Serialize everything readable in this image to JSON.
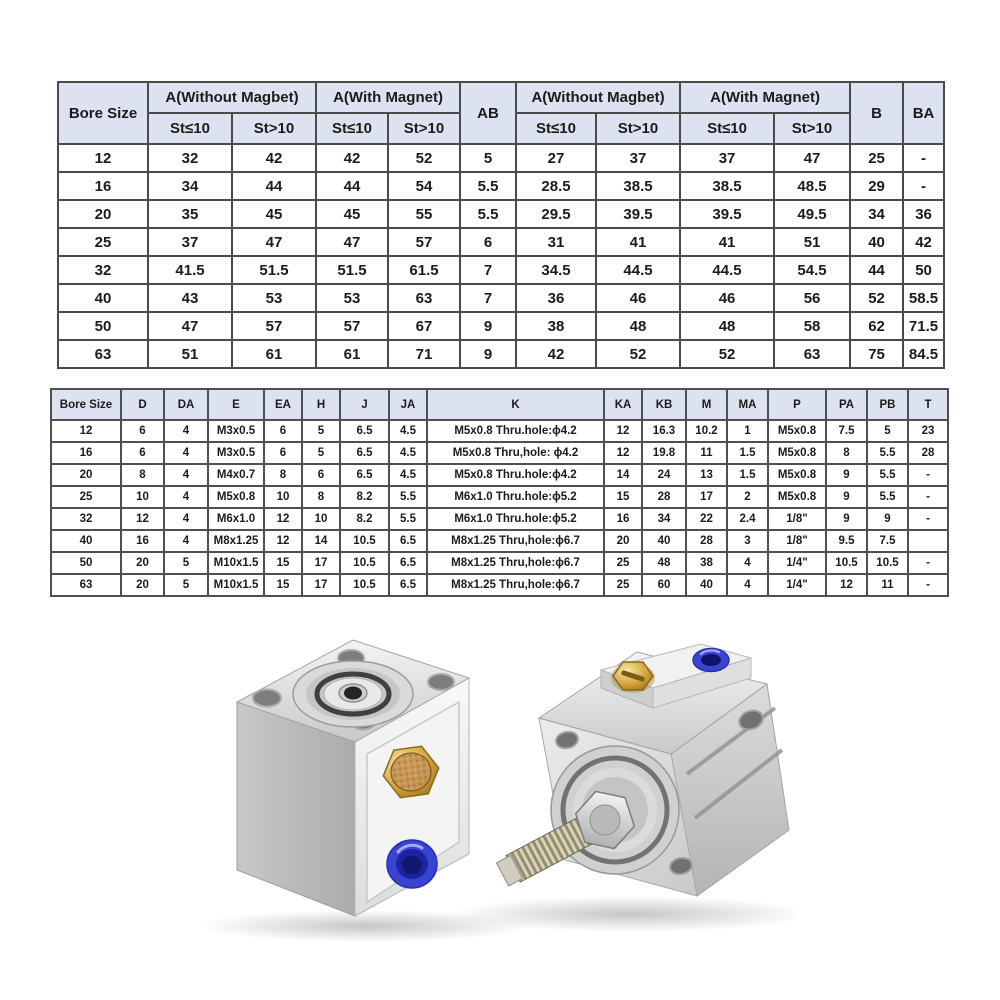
{
  "colors": {
    "header_bg": "#dde2f0",
    "table_border": "#4a4a4a",
    "text": "#1b1b1b",
    "page_bg": "#ffffff",
    "cylinder_body_silver": "#d6d9d8",
    "brass": "#c9992e",
    "port_blue": "#3640cf"
  },
  "table1": {
    "bore_header": "Bore Size",
    "groups": [
      "A(Without Magbet)",
      "A(With Magnet)",
      "A(Without Magbet)",
      "A(With Magnet)"
    ],
    "sub_headers": [
      "St≤10",
      "St>10",
      "St≤10",
      "St>10",
      "St≤10",
      "St>10",
      "St≤10",
      "St>10"
    ],
    "ab_header": "AB",
    "b_header": "B",
    "ba_header": "BA",
    "rows": [
      [
        "12",
        "32",
        "42",
        "42",
        "52",
        "5",
        "27",
        "37",
        "37",
        "47",
        "25",
        "-"
      ],
      [
        "16",
        "34",
        "44",
        "44",
        "54",
        "5.5",
        "28.5",
        "38.5",
        "38.5",
        "48.5",
        "29",
        "-"
      ],
      [
        "20",
        "35",
        "45",
        "45",
        "55",
        "5.5",
        "29.5",
        "39.5",
        "39.5",
        "49.5",
        "34",
        "36"
      ],
      [
        "25",
        "37",
        "47",
        "47",
        "57",
        "6",
        "31",
        "41",
        "41",
        "51",
        "40",
        "42"
      ],
      [
        "32",
        "41.5",
        "51.5",
        "51.5",
        "61.5",
        "7",
        "34.5",
        "44.5",
        "44.5",
        "54.5",
        "44",
        "50"
      ],
      [
        "40",
        "43",
        "53",
        "53",
        "63",
        "7",
        "36",
        "46",
        "46",
        "56",
        "52",
        "58.5"
      ],
      [
        "50",
        "47",
        "57",
        "57",
        "67",
        "9",
        "38",
        "48",
        "48",
        "58",
        "62",
        "71.5"
      ],
      [
        "63",
        "51",
        "61",
        "61",
        "71",
        "9",
        "42",
        "52",
        "52",
        "63",
        "75",
        "84.5"
      ]
    ]
  },
  "table2": {
    "columns": [
      "Bore Size",
      "D",
      "DA",
      "E",
      "EA",
      "H",
      "J",
      "JA",
      "K",
      "KA",
      "KB",
      "M",
      "MA",
      "P",
      "PA",
      "PB",
      "T"
    ],
    "rows": [
      [
        "12",
        "6",
        "4",
        "M3x0.5",
        "6",
        "5",
        "6.5",
        "4.5",
        "M5x0.8 Thru.hole:ϕ4.2",
        "12",
        "16.3",
        "10.2",
        "1",
        "M5x0.8",
        "7.5",
        "5",
        "23"
      ],
      [
        "16",
        "6",
        "4",
        "M3x0.5",
        "6",
        "5",
        "6.5",
        "4.5",
        "M5x0.8 Thru,hole: ϕ4.2",
        "12",
        "19.8",
        "11",
        "1.5",
        "M5x0.8",
        "8",
        "5.5",
        "28"
      ],
      [
        "20",
        "8",
        "4",
        "M4x0.7",
        "8",
        "6",
        "6.5",
        "4.5",
        "M5x0.8 Thru.hole:ϕ4.2",
        "14",
        "24",
        "13",
        "1.5",
        "M5x0.8",
        "9",
        "5.5",
        "-"
      ],
      [
        "25",
        "10",
        "4",
        "M5x0.8",
        "10",
        "8",
        "8.2",
        "5.5",
        "M6x1.0 Thru.hole:ϕ5.2",
        "15",
        "28",
        "17",
        "2",
        "M5x0.8",
        "9",
        "5.5",
        "-"
      ],
      [
        "32",
        "12",
        "4",
        "M6x1.0",
        "12",
        "10",
        "8.2",
        "5.5",
        "M6x1.0 Thru.hole:ϕ5.2",
        "16",
        "34",
        "22",
        "2.4",
        "1/8\"",
        "9",
        "9",
        "-"
      ],
      [
        "40",
        "16",
        "4",
        "M8x1.25",
        "12",
        "14",
        "10.5",
        "6.5",
        "M8x1.25 Thru,hole:ϕ6.7",
        "20",
        "40",
        "28",
        "3",
        "1/8\"",
        "9.5",
        "7.5",
        ""
      ],
      [
        "50",
        "20",
        "5",
        "M10x1.5",
        "15",
        "17",
        "10.5",
        "6.5",
        "M8x1.25 Thru,hole:ϕ6.7",
        "25",
        "48",
        "38",
        "4",
        "1/4\"",
        "10.5",
        "10.5",
        "-"
      ],
      [
        "63",
        "20",
        "5",
        "M10x1.5",
        "15",
        "17",
        "10.5",
        "6.5",
        "M8x1.25 Thru,hole:ϕ6.7",
        "25",
        "60",
        "40",
        "4",
        "1/4\"",
        "12",
        "11",
        "-"
      ]
    ]
  },
  "photo": {
    "parts": [
      "compact-air-cylinder-upright",
      "compact-air-cylinder-tilted",
      "brass-breather-vent",
      "brass-hex-screw",
      "blue-air-port-fitting",
      "threaded-piston-rod"
    ]
  }
}
